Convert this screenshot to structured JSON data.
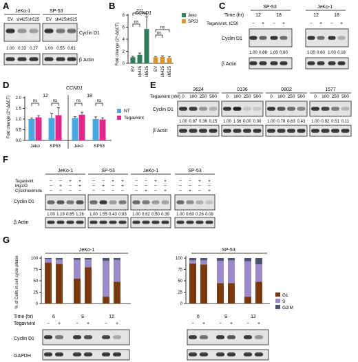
{
  "panels": {
    "A": {
      "label": "A",
      "groups": [
        "JeKo-1",
        "SP-53"
      ],
      "lanes": [
        "EV",
        "sh425",
        "sh525"
      ],
      "target": "Cyclin D1",
      "loading": "β Actin",
      "quant": [
        [
          "1.00",
          "0.33",
          "0.27"
        ],
        [
          "1.00",
          "0.55",
          "0.61"
        ]
      ]
    },
    "B": {
      "label": "B",
      "gene": "CCND1",
      "significance": [
        "****",
        "ns",
        "ns",
        "ns"
      ]
    },
    "C": {
      "label": "C",
      "groups": [
        "SP-53",
        "JeKo-1"
      ],
      "time_label": "Time (hr)",
      "times": [
        "12",
        "18",
        "12",
        "18"
      ],
      "treatment_label": "Tegavivint, IC50",
      "signs": [
        "−",
        "+",
        "−",
        "+",
        "−",
        "+",
        "−",
        "+"
      ],
      "target": "Cyclin D1",
      "loading": "β Actin",
      "quant": [
        "1.00",
        "0.68",
        "1.00",
        "0.60",
        "1.00",
        "0.60",
        "1.00",
        "0.18"
      ]
    },
    "D": {
      "label": "D",
      "gene": "CCND1",
      "times": [
        "12",
        "18"
      ],
      "significance": [
        "ns",
        "ns",
        "ns",
        "ns"
      ]
    },
    "E": {
      "label": "E",
      "treatment_label": "Tegavivint (nM)",
      "groups": [
        "3624",
        "0136",
        "0802",
        "1577"
      ],
      "doses": [
        "0",
        "100",
        "250",
        "500"
      ],
      "target": "Cyclin D1",
      "loading": "β Actin",
      "quant": [
        [
          "1.00",
          "0.97",
          "0.36",
          "0.15"
        ],
        [
          "1.00",
          "1.36",
          "0.00",
          "0.00"
        ],
        [
          "1.00",
          "0.78",
          "0.63",
          "0.43"
        ],
        [
          "1.00",
          "0.92",
          "0.51",
          "0.11"
        ]
      ]
    },
    "F": {
      "label": "F",
      "groups": [
        "JeKo-1",
        "SP-53",
        "JeKo-1",
        "SP-53"
      ],
      "rows": [
        "Tegavivint",
        "Mg132",
        "Cycloheximide"
      ],
      "signs_a": [
        [
          "−",
          "−",
          "+",
          "+"
        ],
        [
          "−",
          "+",
          "−",
          "+"
        ]
      ],
      "signs_b": [
        [
          "−",
          "−",
          "+",
          "+"
        ],
        [
          "−",
          "+",
          "−",
          "+"
        ]
      ],
      "target": "Cyclin D1",
      "loading": "β Actin",
      "quant": [
        [
          "1.00",
          "1.19",
          "0.85",
          "1.26"
        ],
        [
          "1.00",
          "1.55",
          "0.43",
          "0.83"
        ],
        [
          "1.00",
          "0.82",
          "0.50",
          "0.39"
        ],
        [
          "1.00",
          "0.60",
          "0.26",
          "0.08"
        ]
      ]
    },
    "G": {
      "label": "G",
      "groups": [
        "JeKo-1",
        "SP-53"
      ],
      "time_label": "Time (hr)",
      "times": [
        "6",
        "9",
        "12"
      ],
      "treatment_label": "Tegavivint",
      "signs": [
        "−",
        "+",
        "−",
        "+",
        "−",
        "+"
      ],
      "target": "Cyclin D1",
      "loading": "GAPDH"
    }
  },
  "colors": {
    "jeko": "#2e7d5b",
    "sp53": "#d9963a",
    "nt": "#4aa8e0",
    "tega": "#e0288a",
    "g1": "#7a3a10",
    "s": "#9b8ac9",
    "g2m": "#4a5670"
  },
  "chart_data": [
    {
      "panel": "B",
      "type": "bar",
      "title": "CCND1",
      "ylabel": "Fold change (2^-ΔΔCT)",
      "ylim": [
        0,
        8
      ],
      "yticks": [
        0,
        2,
        4,
        6,
        8
      ],
      "legend_position": "top-right",
      "series": [
        {
          "name": "Jeko",
          "categories": [
            "EV",
            "sh425",
            "sh525"
          ],
          "values": [
            1.0,
            1.4,
            5.7
          ],
          "errors": [
            0.2,
            0.3,
            2.0
          ]
        },
        {
          "name": "SP53",
          "categories": [
            "EV",
            "sh425",
            "sh525"
          ],
          "values": [
            1.0,
            1.05,
            0.9
          ],
          "errors": [
            0.15,
            0.2,
            0.2
          ]
        }
      ]
    },
    {
      "panel": "D",
      "type": "bar",
      "title": "CCND1",
      "ylabel": "Fold change (2^-ΔΔCT)",
      "ylim": [
        0,
        2.0
      ],
      "yticks": [
        0.0,
        0.5,
        1.0,
        1.5,
        2.0
      ],
      "legend_position": "right",
      "groups": [
        {
          "time": "12",
          "categories": [
            "Jeko",
            "SP53"
          ],
          "NT": [
            1.0,
            1.05
          ],
          "Tegavivint": [
            1.08,
            1.18
          ],
          "errors_nt": [
            0.05,
            0.22
          ],
          "errors_tega": [
            0.08,
            0.35
          ]
        },
        {
          "time": "18",
          "categories": [
            "Jeko",
            "SP53"
          ],
          "NT": [
            1.05,
            1.0
          ],
          "Tegavivint": [
            1.2,
            0.98
          ],
          "errors_nt": [
            0.06,
            0.1
          ],
          "errors_tega": [
            0.12,
            0.08
          ]
        }
      ],
      "series": [
        {
          "name": "NT"
        },
        {
          "name": "Tegavivint"
        }
      ]
    },
    {
      "panel": "G",
      "type": "bar",
      "ylabel": "% of Cells in cell cycle phase",
      "ylim": [
        0,
        100
      ],
      "yticks": [
        0,
        25,
        50,
        75,
        100
      ],
      "legend_position": "right",
      "series_names": [
        "G1",
        "S",
        "G2/M"
      ],
      "groups": [
        {
          "name": "JeKo-1",
          "bars": [
            {
              "time": "6",
              "tegavivint": "−",
              "G1": 90,
              "S": 8,
              "G2M": 2
            },
            {
              "time": "6",
              "tegavivint": "+",
              "G1": 87,
              "S": 10,
              "G2M": 3
            },
            {
              "time": "9",
              "tegavivint": "−",
              "G1": 55,
              "S": 41,
              "G2M": 4
            },
            {
              "time": "9",
              "tegavivint": "+",
              "G1": 80,
              "S": 17,
              "G2M": 3
            },
            {
              "time": "12",
              "tegavivint": "−",
              "G1": 15,
              "S": 79,
              "G2M": 6
            },
            {
              "time": "12",
              "tegavivint": "+",
              "G1": 48,
              "S": 48,
              "G2M": 4
            }
          ]
        },
        {
          "name": "SP-53",
          "bars": [
            {
              "time": "6",
              "tegavivint": "−",
              "G1": 88,
              "S": 7,
              "G2M": 5
            },
            {
              "time": "6",
              "tegavivint": "+",
              "G1": 86,
              "S": 9,
              "G2M": 5
            },
            {
              "time": "9",
              "tegavivint": "−",
              "G1": 45,
              "S": 49,
              "G2M": 6
            },
            {
              "time": "9",
              "tegavivint": "+",
              "G1": 45,
              "S": 50,
              "G2M": 5
            },
            {
              "time": "12",
              "tegavivint": "−",
              "G1": 15,
              "S": 78,
              "G2M": 7
            },
            {
              "time": "12",
              "tegavivint": "+",
              "G1": 48,
              "S": 38,
              "G2M": 14
            }
          ]
        }
      ]
    }
  ]
}
